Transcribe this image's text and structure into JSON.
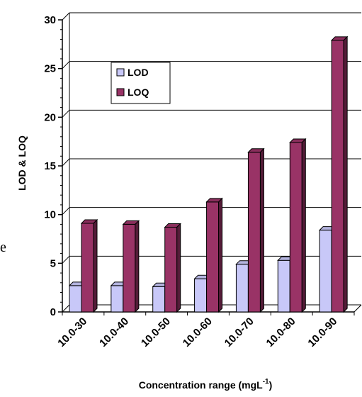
{
  "chart_data": {
    "type": "bar",
    "categories": [
      "10.0-30",
      "10.0-40",
      "10.0-50",
      "10.0-60",
      "10.0-70",
      "10.0-80",
      "10.0-90"
    ],
    "series": [
      {
        "name": "LOD",
        "values": [
          2.7,
          2.7,
          2.6,
          3.4,
          4.9,
          5.3,
          8.4
        ],
        "color": "#c8c8f8"
      },
      {
        "name": "LOQ",
        "values": [
          9.1,
          9.0,
          8.7,
          11.3,
          16.4,
          17.4,
          27.9
        ],
        "color": "#993366"
      }
    ],
    "xlabel": "Concentration range (mgL",
    "xlabel_sup": "-1",
    "xlabel_end": ")",
    "ylabel": "LOD & LOQ",
    "ylim": [
      0,
      30
    ],
    "yticks": [
      "0",
      "5",
      "10",
      "15",
      "20",
      "25",
      "30"
    ],
    "grid": true,
    "legend_position": "top-left",
    "stray_text": "e"
  }
}
